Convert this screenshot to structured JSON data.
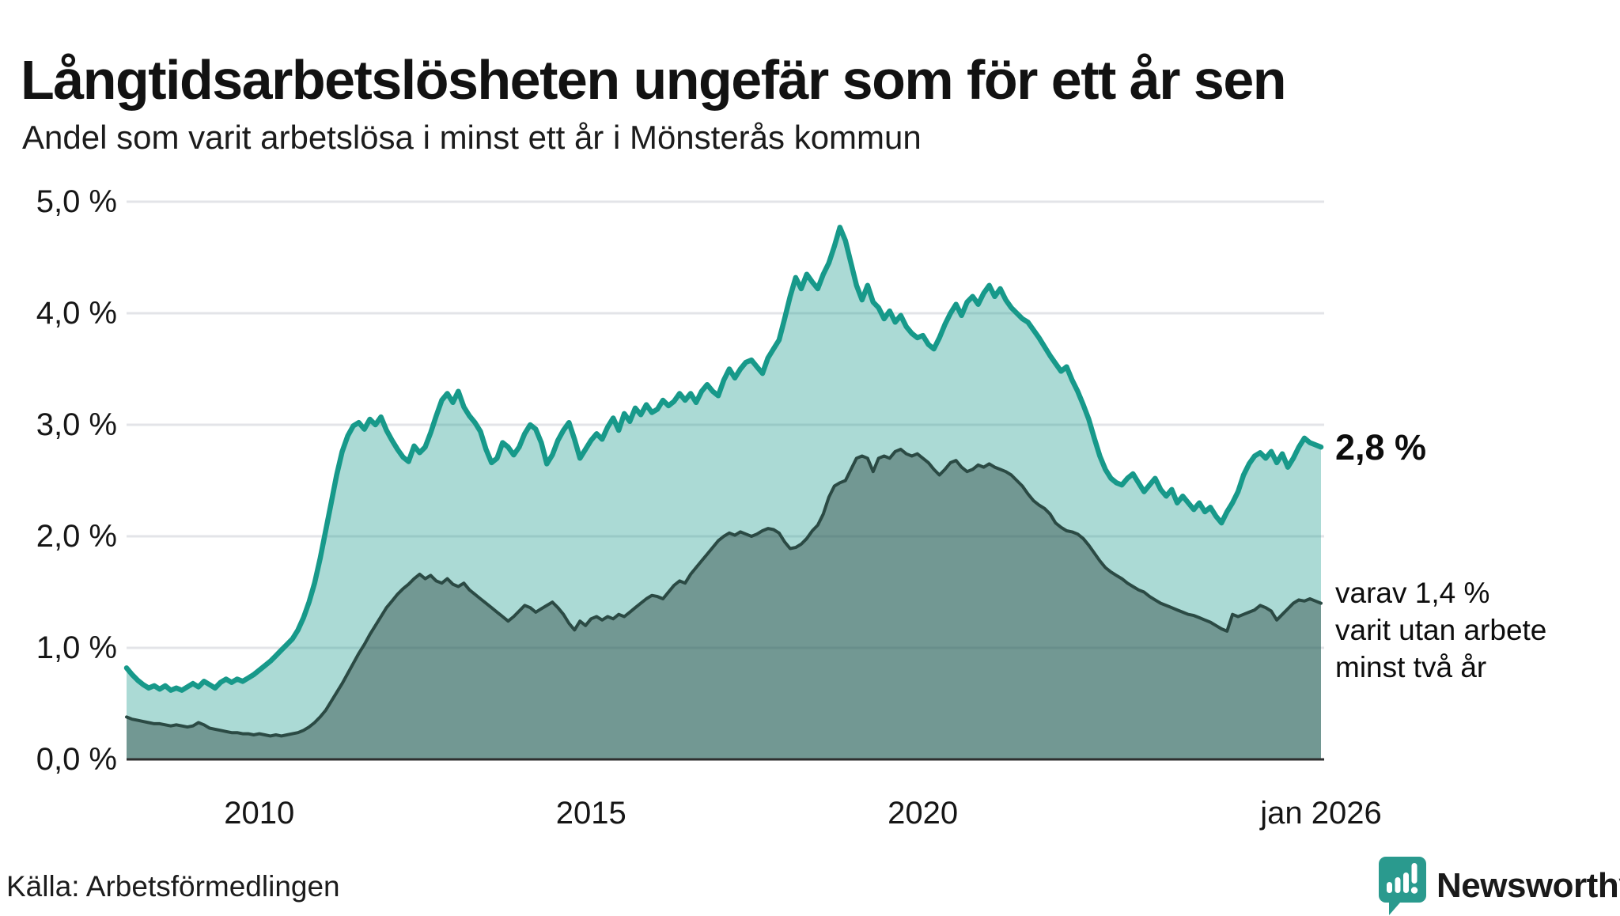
{
  "header": {
    "title": "Långtidsarbetslösheten ungefär som för ett år sen",
    "subtitle": "Andel som varit arbetslösa i minst ett år i Mönsterås kommun"
  },
  "annotations": {
    "latest_value": "2,8 %",
    "note_lines": [
      "varav 1,4 %",
      "varit utan arbete",
      "minst två år"
    ]
  },
  "source": "Källa: Arbetsförmedlingen",
  "brand": {
    "name": "Newsworthy",
    "color": "#2a9a8e"
  },
  "colors": {
    "line_total": "#17998a",
    "fill_total": "rgba(23,153,139,0.36)",
    "line_twoyear": "#2b4a44",
    "fill_twoyear": "rgba(36,62,57,0.42)",
    "grid": "#e3e4e8",
    "axis": "#2e2e2e",
    "text": "#1a1a1a"
  },
  "chart_data": {
    "type": "area",
    "title": "Långtidsarbetslösheten ungefär som för ett år sen",
    "subtitle": "Andel som varit arbetslösa i minst ett år i Mönsterås kommun",
    "unit": "%",
    "x_start_year": 2008.0,
    "x_end_year": 2026.0,
    "x_step_months": 1,
    "ylim": [
      0,
      5
    ],
    "grid": true,
    "yticks": [
      {
        "label": "5,0 %",
        "value": 5.0
      },
      {
        "label": "4,0 %",
        "value": 4.0
      },
      {
        "label": "3,0 %",
        "value": 3.0
      },
      {
        "label": "2,0 %",
        "value": 2.0
      },
      {
        "label": "1,0 %",
        "value": 1.0
      },
      {
        "label": "0,0 %",
        "value": 0.0
      }
    ],
    "xticks": [
      {
        "label": "2010",
        "year": 2010.0
      },
      {
        "label": "2015",
        "year": 2015.0
      },
      {
        "label": "2020",
        "year": 2020.0
      },
      {
        "label": "jan 2026",
        "year": 2026.0
      }
    ],
    "series": [
      {
        "name": "Andel arbetslösa minst ett år",
        "latest_label": "2,8 %",
        "latest_value": 2.8,
        "line_color": "#17998a",
        "fill_color": "rgba(23,153,139,0.36)",
        "values": [
          0.82,
          0.76,
          0.71,
          0.67,
          0.64,
          0.66,
          0.63,
          0.66,
          0.62,
          0.64,
          0.62,
          0.65,
          0.68,
          0.65,
          0.7,
          0.67,
          0.64,
          0.69,
          0.72,
          0.69,
          0.72,
          0.7,
          0.73,
          0.76,
          0.8,
          0.84,
          0.88,
          0.93,
          0.98,
          1.03,
          1.08,
          1.16,
          1.27,
          1.41,
          1.58,
          1.8,
          2.05,
          2.3,
          2.55,
          2.76,
          2.9,
          2.99,
          3.02,
          2.96,
          3.05,
          3.0,
          3.07,
          2.95,
          2.86,
          2.78,
          2.71,
          2.67,
          2.81,
          2.75,
          2.8,
          2.93,
          3.08,
          3.22,
          3.28,
          3.2,
          3.3,
          3.16,
          3.08,
          3.02,
          2.94,
          2.78,
          2.66,
          2.7,
          2.84,
          2.8,
          2.73,
          2.8,
          2.92,
          3.0,
          2.96,
          2.84,
          2.65,
          2.73,
          2.86,
          2.95,
          3.02,
          2.87,
          2.7,
          2.78,
          2.86,
          2.92,
          2.87,
          2.98,
          3.06,
          2.95,
          3.1,
          3.03,
          3.15,
          3.09,
          3.18,
          3.11,
          3.14,
          3.22,
          3.17,
          3.21,
          3.28,
          3.22,
          3.28,
          3.2,
          3.3,
          3.36,
          3.3,
          3.26,
          3.4,
          3.5,
          3.42,
          3.5,
          3.56,
          3.58,
          3.52,
          3.46,
          3.6,
          3.68,
          3.76,
          3.95,
          4.15,
          4.32,
          4.22,
          4.35,
          4.28,
          4.22,
          4.35,
          4.45,
          4.6,
          4.77,
          4.65,
          4.45,
          4.25,
          4.12,
          4.25,
          4.1,
          4.05,
          3.95,
          4.02,
          3.92,
          3.98,
          3.88,
          3.82,
          3.78,
          3.8,
          3.72,
          3.68,
          3.78,
          3.9,
          4.0,
          4.08,
          3.98,
          4.1,
          4.15,
          4.08,
          4.18,
          4.25,
          4.15,
          4.22,
          4.12,
          4.05,
          4.0,
          3.95,
          3.92,
          3.85,
          3.78,
          3.7,
          3.62,
          3.55,
          3.48,
          3.52,
          3.4,
          3.3,
          3.18,
          3.05,
          2.88,
          2.72,
          2.6,
          2.52,
          2.48,
          2.46,
          2.52,
          2.56,
          2.48,
          2.4,
          2.46,
          2.52,
          2.42,
          2.36,
          2.42,
          2.3,
          2.36,
          2.3,
          2.24,
          2.3,
          2.22,
          2.26,
          2.18,
          2.12,
          2.22,
          2.3,
          2.4,
          2.55,
          2.65,
          2.72,
          2.75,
          2.7,
          2.76,
          2.66,
          2.74,
          2.62,
          2.7,
          2.8,
          2.88,
          2.84,
          2.82,
          2.8
        ]
      },
      {
        "name": "Andel utan arbete minst två år",
        "latest_label": "1,4 %",
        "latest_value": 1.4,
        "line_color": "#2b4a44",
        "fill_color": "rgba(36,62,57,0.42)",
        "values": [
          0.38,
          0.36,
          0.35,
          0.34,
          0.33,
          0.32,
          0.32,
          0.31,
          0.3,
          0.31,
          0.3,
          0.29,
          0.3,
          0.33,
          0.31,
          0.28,
          0.27,
          0.26,
          0.25,
          0.24,
          0.24,
          0.23,
          0.23,
          0.22,
          0.23,
          0.22,
          0.21,
          0.22,
          0.21,
          0.22,
          0.23,
          0.24,
          0.26,
          0.29,
          0.33,
          0.38,
          0.44,
          0.52,
          0.6,
          0.68,
          0.77,
          0.86,
          0.95,
          1.03,
          1.12,
          1.2,
          1.28,
          1.36,
          1.42,
          1.48,
          1.53,
          1.57,
          1.62,
          1.66,
          1.62,
          1.65,
          1.6,
          1.58,
          1.62,
          1.57,
          1.55,
          1.58,
          1.52,
          1.48,
          1.44,
          1.4,
          1.36,
          1.32,
          1.28,
          1.24,
          1.28,
          1.33,
          1.38,
          1.36,
          1.32,
          1.35,
          1.38,
          1.41,
          1.36,
          1.3,
          1.22,
          1.16,
          1.24,
          1.2,
          1.26,
          1.28,
          1.25,
          1.28,
          1.26,
          1.3,
          1.28,
          1.32,
          1.36,
          1.4,
          1.44,
          1.47,
          1.46,
          1.44,
          1.5,
          1.56,
          1.6,
          1.58,
          1.66,
          1.72,
          1.78,
          1.84,
          1.9,
          1.96,
          2.0,
          2.03,
          2.01,
          2.04,
          2.02,
          2.0,
          2.02,
          2.05,
          2.07,
          2.06,
          2.03,
          1.95,
          1.89,
          1.9,
          1.93,
          1.98,
          2.05,
          2.1,
          2.2,
          2.35,
          2.45,
          2.48,
          2.5,
          2.6,
          2.7,
          2.72,
          2.7,
          2.58,
          2.7,
          2.72,
          2.7,
          2.76,
          2.78,
          2.74,
          2.72,
          2.74,
          2.7,
          2.66,
          2.6,
          2.55,
          2.6,
          2.66,
          2.68,
          2.62,
          2.58,
          2.6,
          2.64,
          2.62,
          2.65,
          2.62,
          2.6,
          2.58,
          2.55,
          2.5,
          2.45,
          2.38,
          2.32,
          2.28,
          2.25,
          2.2,
          2.12,
          2.08,
          2.05,
          2.04,
          2.02,
          1.98,
          1.92,
          1.85,
          1.78,
          1.72,
          1.68,
          1.65,
          1.62,
          1.58,
          1.55,
          1.52,
          1.5,
          1.46,
          1.43,
          1.4,
          1.38,
          1.36,
          1.34,
          1.32,
          1.3,
          1.29,
          1.27,
          1.25,
          1.23,
          1.2,
          1.17,
          1.15,
          1.3,
          1.28,
          1.3,
          1.32,
          1.34,
          1.38,
          1.36,
          1.33,
          1.25,
          1.3,
          1.35,
          1.4,
          1.43,
          1.42,
          1.44,
          1.42,
          1.4
        ]
      }
    ]
  }
}
